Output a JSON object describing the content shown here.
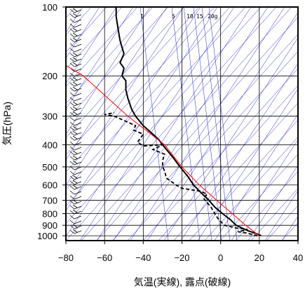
{
  "chart_data": {
    "type": "line",
    "xlabel": "気温(実線), 露点(破線)",
    "ylabel": "気圧(hPa)",
    "xlim": [
      -80,
      40
    ],
    "ylim": [
      1050,
      100
    ],
    "y_scale": "log",
    "x_ticks": [
      -80,
      -60,
      -40,
      -20,
      0,
      20,
      40
    ],
    "y_ticks": [
      100,
      200,
      300,
      400,
      500,
      600,
      700,
      800,
      900,
      1000
    ],
    "y_tick_labels": [
      "100",
      "200",
      "300",
      "400",
      "500",
      "600",
      "700",
      "800",
      "900",
      "1000"
    ],
    "grid": true,
    "mixing_ratio_labels": [
      "1",
      "5",
      "10",
      "15",
      "20g"
    ],
    "colors": {
      "temperature": "#000000",
      "dewpoint": "#000000",
      "parcel": "#ff0000",
      "background_lines": "#2020c8",
      "grid": "#000000"
    },
    "series": [
      {
        "name": "",
        "style": "solid",
        "points": [
          [
            21,
            1000
          ],
          [
            18,
            975
          ],
          [
            14,
            950
          ],
          [
            11,
            925
          ],
          [
            8,
            900
          ],
          [
            5,
            850
          ],
          [
            1,
            800
          ],
          [
            -3,
            750
          ],
          [
            -6,
            700
          ],
          [
            -10,
            650
          ],
          [
            -14,
            600
          ],
          [
            -17,
            550
          ],
          [
            -21,
            500
          ],
          [
            -25,
            450
          ],
          [
            -28,
            420
          ],
          [
            -30,
            400
          ],
          [
            -32,
            380
          ],
          [
            -35,
            360
          ],
          [
            -40,
            330
          ],
          [
            -44,
            300
          ],
          [
            -46,
            280
          ],
          [
            -48,
            250
          ],
          [
            -49,
            230
          ],
          [
            -49,
            210
          ],
          [
            -51,
            200
          ],
          [
            -50,
            185
          ],
          [
            -52,
            175
          ],
          [
            -50,
            160
          ],
          [
            -51,
            150
          ],
          [
            -52,
            140
          ],
          [
            -53,
            125
          ],
          [
            -54,
            110
          ],
          [
            -54,
            100
          ]
        ]
      },
      {
        "name": "",
        "style": "dashed",
        "points": [
          [
            19,
            1000
          ],
          [
            14,
            975
          ],
          [
            9,
            960
          ],
          [
            14,
            940
          ],
          [
            8,
            925
          ],
          [
            2,
            900
          ],
          [
            -1,
            850
          ],
          [
            -3,
            800
          ],
          [
            -5,
            750
          ],
          [
            -8,
            700
          ],
          [
            -9,
            680
          ],
          [
            -7,
            660
          ],
          [
            -10,
            640
          ],
          [
            -20,
            620
          ],
          [
            -23,
            600
          ],
          [
            -28,
            560
          ],
          [
            -29,
            520
          ],
          [
            -30,
            500
          ],
          [
            -30,
            470
          ],
          [
            -29,
            440
          ],
          [
            -35,
            420
          ],
          [
            -30,
            400
          ],
          [
            -40,
            405
          ],
          [
            -43,
            390
          ],
          [
            -40,
            360
          ],
          [
            -45,
            345
          ],
          [
            -44,
            330
          ],
          [
            -55,
            300
          ],
          [
            -60,
            295
          ],
          [
            -55,
            290
          ]
        ]
      },
      {
        "name": "",
        "style": "parcel",
        "points": [
          [
            20,
            1000
          ],
          [
            13,
            900
          ],
          [
            6,
            800
          ],
          [
            -2,
            700
          ],
          [
            -11,
            600
          ],
          [
            -20,
            500
          ],
          [
            -29,
            400
          ],
          [
            -48,
            300
          ],
          [
            -71,
            200
          ],
          [
            -80,
            180
          ]
        ]
      }
    ],
    "wind_barbs": "left margin, 100-1000 hPa"
  }
}
